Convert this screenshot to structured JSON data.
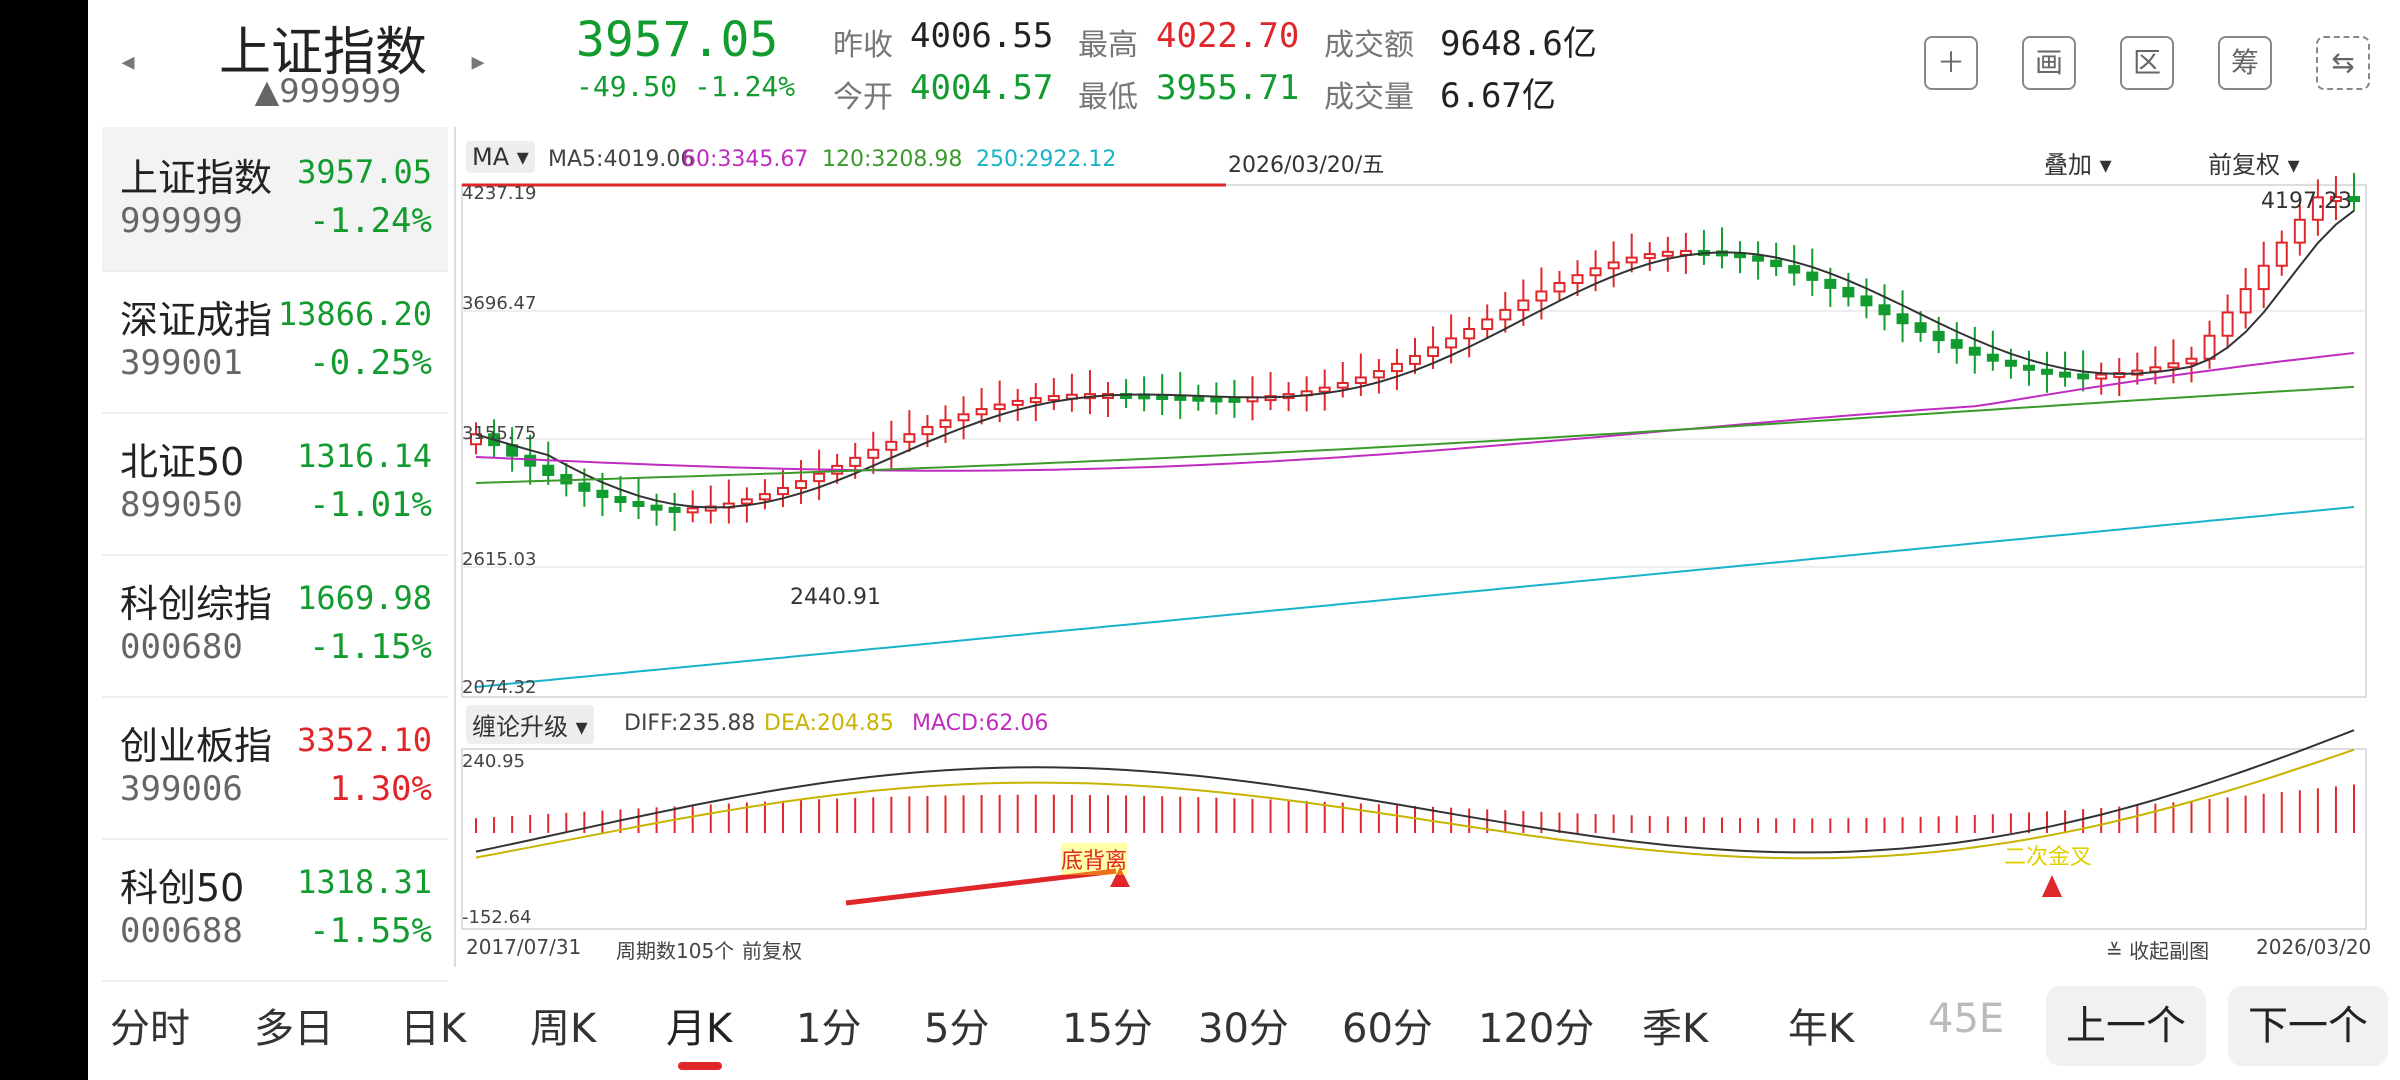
{
  "header": {
    "index_name": "上证指数",
    "index_code": "▲999999",
    "price": "3957.05",
    "change": "-49.50 -1.24%",
    "stats": {
      "prev_close_label": "昨收",
      "prev_close": "4006.55",
      "open_label": "今开",
      "open": "4004.57",
      "high_label": "最高",
      "high": "4022.70",
      "low_label": "最低",
      "low": "3955.71",
      "amount_label": "成交额",
      "amount": "9648.6亿",
      "volume_label": "成交量",
      "volume": "6.67亿"
    },
    "tools": [
      "＋",
      "画",
      "区",
      "筹",
      "⇆"
    ]
  },
  "stock_list": [
    {
      "name": "上证指数",
      "code": "999999",
      "price": "3957.05",
      "pct": "-1.24%",
      "dir": "down"
    },
    {
      "name": "深证成指",
      "code": "399001",
      "price": "13866.20",
      "pct": "-0.25%",
      "dir": "down"
    },
    {
      "name": "北证50",
      "code": "899050",
      "price": "1316.14",
      "pct": "-1.01%",
      "dir": "down"
    },
    {
      "name": "科创综指",
      "code": "000680",
      "price": "1669.98",
      "pct": "-1.15%",
      "dir": "down"
    },
    {
      "name": "创业板指",
      "code": "399006",
      "price": "3352.10",
      "pct": "1.30%",
      "dir": "up"
    },
    {
      "name": "科创50",
      "code": "000688",
      "price": "1318.31",
      "pct": "-1.55%",
      "dir": "down"
    }
  ],
  "chart": {
    "ma_selector": "MA",
    "ma5": "MA5:4019.06",
    "ma60": "60:3345.67",
    "ma120": "120:3208.98",
    "ma250": "250:2922.12",
    "date_header": "2026/03/20/五",
    "overlay_label": "叠加",
    "fq_label": "前复权",
    "y_ticks": [
      "4237.19",
      "3696.47",
      "3155.75",
      "2615.03",
      "2074.32"
    ],
    "max_label": "4197.23",
    "min_label": "2440.91",
    "indicator_selector": "缠论升级",
    "diff": "DIFF:235.88",
    "dea": "DEA:204.85",
    "macd": "MACD:62.06",
    "macd_top": "240.95",
    "macd_bottom": "-152.64",
    "annot_1": "底背离",
    "annot_2": "二次金叉",
    "start_date": "2017/07/31",
    "period_count": "周期数105个",
    "fq_footer": "前复权",
    "collapse_label": "收起副图",
    "end_date": "2026/03/20",
    "colors": {
      "ma5": "#333333",
      "ma60": "#c02cc0",
      "ma120": "#3a9a2a",
      "ma250": "#19b3c8",
      "up": "#e0262a",
      "down": "#129b2e",
      "dea": "#c8b400"
    }
  },
  "tabs": [
    "分时",
    "多日",
    "日K",
    "周K",
    "月K",
    "1分",
    "5分",
    "15分",
    "30分",
    "60分",
    "120分",
    "季K",
    "年K",
    "45E"
  ],
  "active_tab": "月K",
  "nav": {
    "prev": "上一个",
    "next": "下一个"
  }
}
